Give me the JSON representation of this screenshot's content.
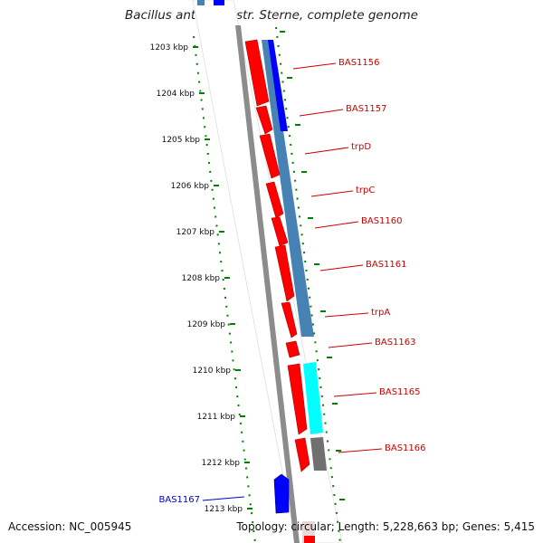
{
  "title": "Bacillus anthracis str. Sterne, complete genome",
  "footer": {
    "accession": "Accession: NC_005945",
    "summary": "Topology: circular; Length: 5,228,663 bp; Genes: 5,415"
  },
  "scale": {
    "unit": "kbp",
    "ticks": [
      "1203 kbp",
      "1204 kbp",
      "1205 kbp",
      "1206 kbp",
      "1207 kbp",
      "1208 kbp",
      "1209 kbp",
      "1210 kbp",
      "1211 kbp",
      "1212 kbp",
      "1213 kbp"
    ]
  },
  "colors": {
    "gene_red": "#ff0000",
    "gene_blue": "#0000ff",
    "steelblue": "#4682b4",
    "cyan": "#00ffff",
    "gray": "#707070",
    "label_red": "#cc0000",
    "label_blue": "#0000cc",
    "tick_green": "#008000",
    "backbone": "#8c8c8c"
  },
  "genes": [
    {
      "label": "BAS1156",
      "strand": "forward",
      "color": "red"
    },
    {
      "label": "BAS1157",
      "strand": "forward",
      "color": "red"
    },
    {
      "label": "trpD",
      "strand": "forward",
      "color": "red"
    },
    {
      "label": "trpC",
      "strand": "forward",
      "color": "red"
    },
    {
      "label": "BAS1160",
      "strand": "forward",
      "color": "red"
    },
    {
      "label": "BAS1161",
      "strand": "forward",
      "color": "red"
    },
    {
      "label": "trpA",
      "strand": "forward",
      "color": "red"
    },
    {
      "label": "BAS1163",
      "strand": "forward",
      "color": "red"
    },
    {
      "label": "BAS1165",
      "strand": "forward",
      "color": "red"
    },
    {
      "label": "BAS1166",
      "strand": "forward",
      "color": "red"
    },
    {
      "label": "BAS1167",
      "strand": "reverse",
      "color": "blue"
    }
  ]
}
